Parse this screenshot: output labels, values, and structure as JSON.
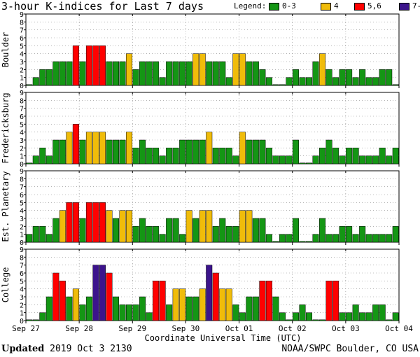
{
  "title": "3-hour K-indices for Last 7 days",
  "legend": {
    "label": "Legend:",
    "items": [
      {
        "label": "0-3",
        "color": "#149614"
      },
      {
        "label": "4",
        "color": "#f0bc0a"
      },
      {
        "label": "5,6",
        "color": "#ff0000"
      },
      {
        "label": "7-9",
        "color": "#3c148c"
      }
    ]
  },
  "footer": {
    "updated_label": "Updated",
    "updated_value": "2019 Oct  3 2130",
    "credit": "NOAA/SWPC Boulder, CO USA"
  },
  "chart_data": {
    "type": "bar",
    "xlabel": "Coordinate Universal Time (UTC)",
    "x_tick_labels": [
      "Sep 27",
      "Sep 28",
      "Sep 29",
      "Sep 30",
      "Oct 01",
      "Oct 02",
      "Oct 03",
      "Oct 04"
    ],
    "ylim": [
      0,
      9
    ],
    "y_ticks": [
      0,
      1,
      2,
      3,
      4,
      5,
      6,
      7,
      8,
      9
    ],
    "intervals_per_day": 8,
    "panels": [
      {
        "name": "Boulder",
        "values": [
          0,
          1,
          2,
          2,
          3,
          3,
          3,
          5,
          3,
          5,
          5,
          5,
          3,
          3,
          3,
          4,
          2,
          3,
          3,
          3,
          1,
          3,
          3,
          3,
          3,
          4,
          4,
          3,
          3,
          3,
          1,
          4,
          4,
          3,
          3,
          2,
          1,
          0,
          0,
          1,
          2,
          1,
          1,
          3,
          4,
          2,
          1,
          2,
          2,
          1,
          2,
          1,
          1,
          2,
          2,
          0
        ]
      },
      {
        "name": "Fredericksburg",
        "values": [
          0,
          1,
          2,
          1,
          3,
          3,
          4,
          5,
          3,
          4,
          4,
          4,
          3,
          3,
          3,
          4,
          2,
          3,
          2,
          2,
          1,
          2,
          2,
          3,
          3,
          3,
          3,
          4,
          2,
          2,
          2,
          1,
          4,
          3,
          3,
          3,
          2,
          1,
          1,
          1,
          3,
          0,
          0,
          1,
          2,
          3,
          2,
          1,
          2,
          2,
          1,
          1,
          1,
          2,
          1,
          2
        ]
      },
      {
        "name": "Est. Planetary",
        "values": [
          1,
          2,
          2,
          1,
          3,
          4,
          5,
          5,
          3,
          5,
          5,
          5,
          4,
          3,
          4,
          4,
          2,
          3,
          2,
          2,
          1,
          3,
          3,
          1,
          4,
          3,
          4,
          4,
          2,
          3,
          2,
          2,
          4,
          4,
          3,
          3,
          1,
          0,
          1,
          1,
          3,
          0,
          0,
          1,
          3,
          1,
          1,
          2,
          2,
          1,
          2,
          1,
          1,
          1,
          1,
          2
        ]
      },
      {
        "name": "College",
        "values": [
          0,
          0,
          1,
          3,
          6,
          5,
          3,
          4,
          2,
          3,
          7,
          7,
          6,
          3,
          2,
          2,
          2,
          3,
          1,
          5,
          5,
          2,
          4,
          4,
          3,
          3,
          4,
          7,
          6,
          4,
          4,
          2,
          1,
          3,
          3,
          5,
          5,
          3,
          1,
          0,
          1,
          2,
          1,
          0,
          0,
          5,
          5,
          1,
          1,
          2,
          1,
          1,
          2,
          2,
          0,
          1
        ]
      }
    ]
  }
}
